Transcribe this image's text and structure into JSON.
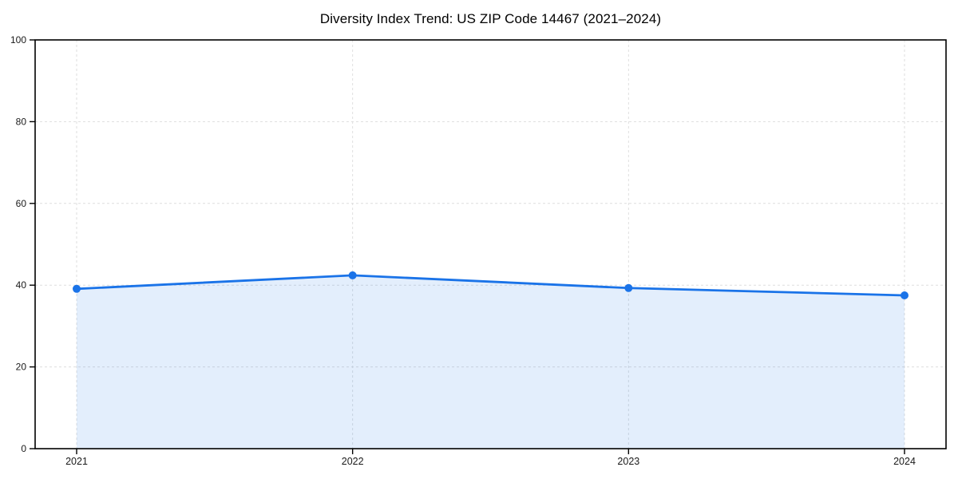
{
  "chart_data": {
    "type": "line",
    "title": "Diversity Index Trend: US ZIP Code 14467 (2021–2024)",
    "x": [
      "2021",
      "2022",
      "2023",
      "2024"
    ],
    "series": [
      {
        "name": "Diversity Index",
        "values": [
          39.1,
          42.4,
          39.3,
          37.5
        ]
      }
    ],
    "xlabel": "",
    "ylabel": "",
    "ylim": [
      0,
      100
    ],
    "yticks": [
      0,
      20,
      40,
      60,
      80,
      100
    ],
    "grid": true,
    "grid_style": "dashed",
    "legend": false,
    "area_fill": true,
    "marker": "circle",
    "colors": {
      "line": "#1a73e8",
      "marker": "#1a73e8",
      "fill": "rgba(26,115,232,0.12)",
      "grid": "#dedede",
      "axis": "#000000",
      "tick_label": "#1a1a1a",
      "title": "#000000"
    }
  }
}
